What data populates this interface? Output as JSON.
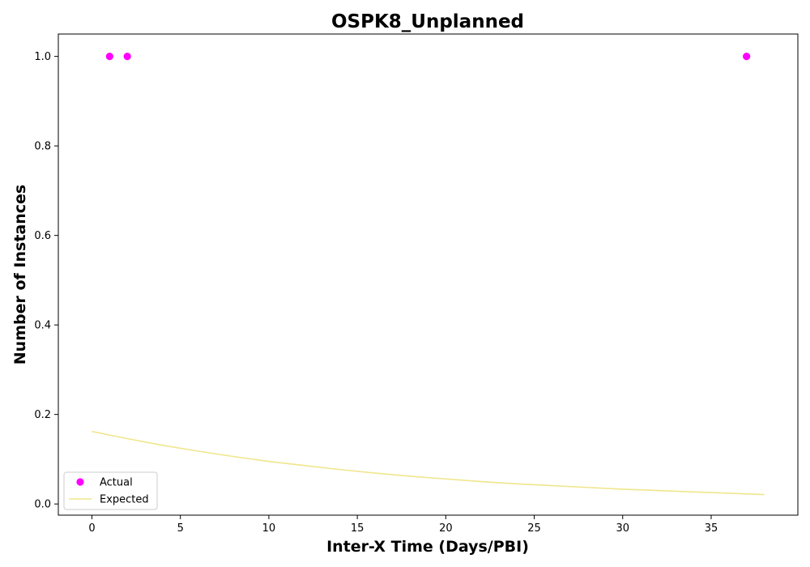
{
  "chart_data": {
    "type": "scatter",
    "title": "OSPK8_Unplanned",
    "xlabel": "Inter-X Time (Days/PBI)",
    "ylabel": "Number of Instances",
    "xlim": [
      -1.9,
      39.9
    ],
    "ylim": [
      -0.025,
      1.05
    ],
    "xticks": [
      0,
      5,
      10,
      15,
      20,
      25,
      30,
      35
    ],
    "yticks": [
      0.0,
      0.2,
      0.4,
      0.6,
      0.8,
      1.0
    ],
    "grid": false,
    "legend_position": "lower-left",
    "series": [
      {
        "name": "Actual",
        "kind": "scatter",
        "color": "#ff00ff",
        "points": [
          {
            "x": 1,
            "y": 1.0
          },
          {
            "x": 2,
            "y": 1.0
          },
          {
            "x": 37,
            "y": 1.0
          }
        ]
      },
      {
        "name": "Expected",
        "kind": "line",
        "color": "#f0e68c",
        "points": [
          {
            "x": 0,
            "y": 0.162
          },
          {
            "x": 2,
            "y": 0.146
          },
          {
            "x": 4,
            "y": 0.131
          },
          {
            "x": 6,
            "y": 0.118
          },
          {
            "x": 8,
            "y": 0.106
          },
          {
            "x": 10,
            "y": 0.095
          },
          {
            "x": 12,
            "y": 0.086
          },
          {
            "x": 14,
            "y": 0.077
          },
          {
            "x": 16,
            "y": 0.069
          },
          {
            "x": 18,
            "y": 0.062
          },
          {
            "x": 20,
            "y": 0.056
          },
          {
            "x": 22,
            "y": 0.05
          },
          {
            "x": 24,
            "y": 0.045
          },
          {
            "x": 26,
            "y": 0.041
          },
          {
            "x": 28,
            "y": 0.037
          },
          {
            "x": 30,
            "y": 0.033
          },
          {
            "x": 32,
            "y": 0.03
          },
          {
            "x": 34,
            "y": 0.027
          },
          {
            "x": 36,
            "y": 0.024
          },
          {
            "x": 38,
            "y": 0.021
          }
        ]
      }
    ]
  }
}
